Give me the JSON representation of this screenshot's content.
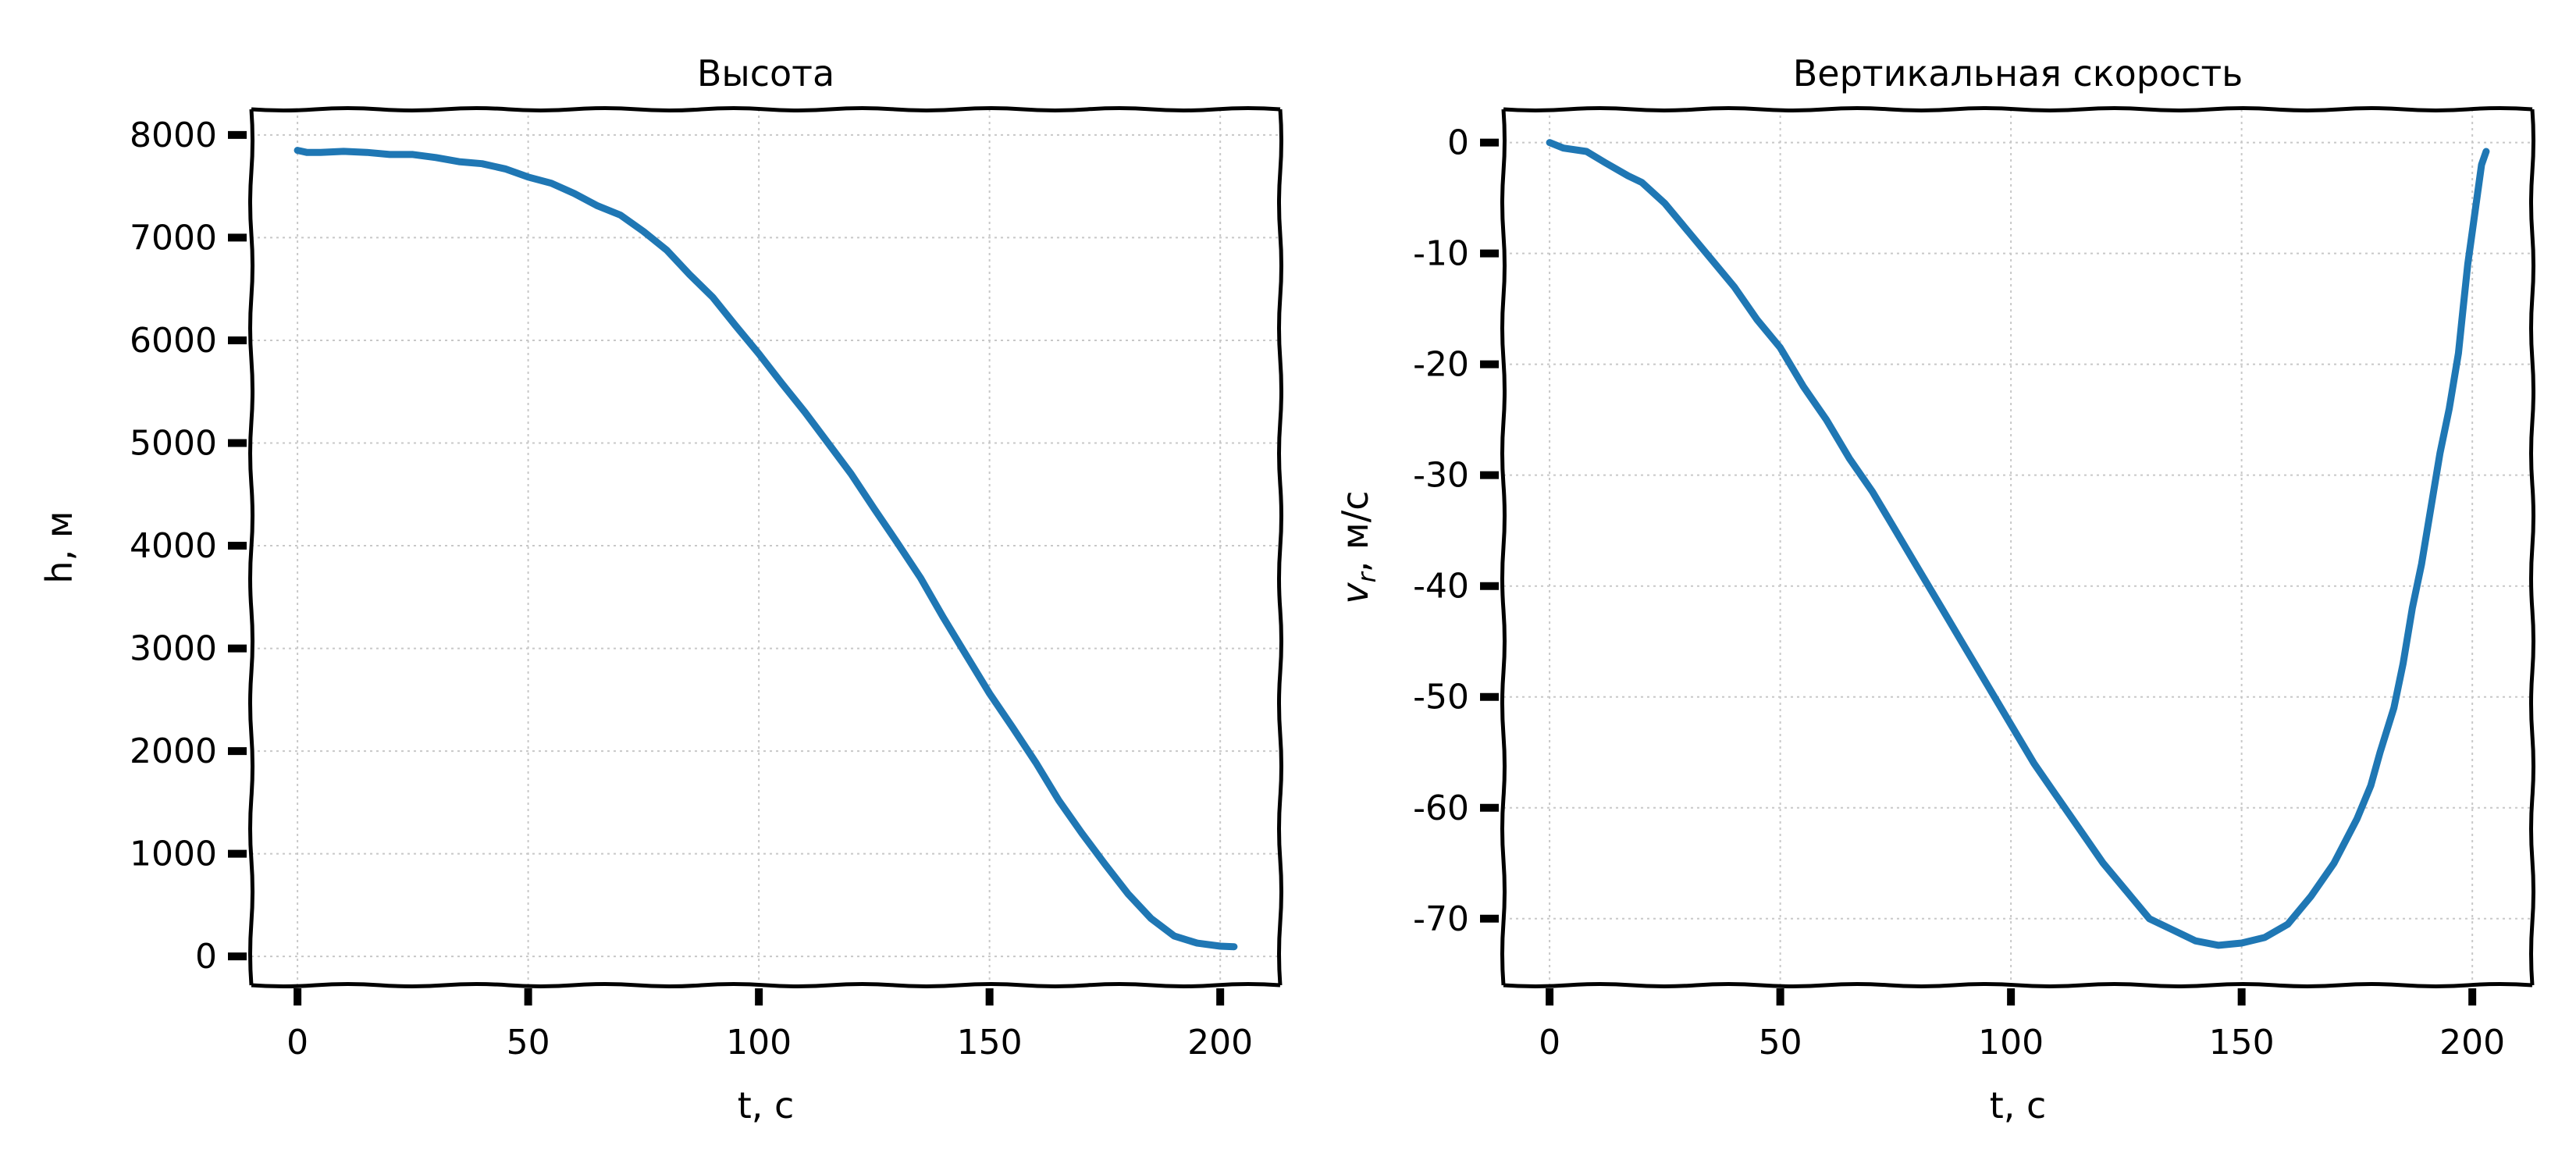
{
  "chart_data": [
    {
      "type": "line",
      "title": "Высота",
      "xlabel": "t, c",
      "ylabel": "h, м",
      "xlim": [
        -10,
        213
      ],
      "ylim": [
        -280,
        8250
      ],
      "xticks": [
        0,
        50,
        100,
        150,
        200
      ],
      "yticks": [
        0,
        1000,
        2000,
        3000,
        4000,
        5000,
        6000,
        7000,
        8000
      ],
      "grid": true,
      "color": "#1f77b4",
      "series": [
        {
          "x": [
            0,
            2,
            5,
            10,
            15,
            20,
            25,
            30,
            35,
            40,
            45,
            50,
            55,
            60,
            65,
            70,
            75,
            80,
            85,
            90,
            95,
            100,
            105,
            110,
            115,
            120,
            125,
            130,
            135,
            140,
            145,
            150,
            155,
            160,
            165,
            170,
            175,
            180,
            185,
            190,
            195,
            200,
            203
          ],
          "y": [
            7850,
            7830,
            7830,
            7840,
            7830,
            7810,
            7810,
            7780,
            7740,
            7720,
            7670,
            7590,
            7530,
            7430,
            7310,
            7220,
            7060,
            6880,
            6640,
            6420,
            6140,
            5870,
            5580,
            5300,
            5000,
            4700,
            4360,
            4030,
            3690,
            3300,
            2930,
            2560,
            2230,
            1890,
            1520,
            1200,
            900,
            610,
            370,
            200,
            130,
            100,
            95
          ]
        }
      ]
    },
    {
      "type": "line",
      "title": "Вертикальная скорость",
      "xlabel": "t, c",
      "ylabel": "v_r, м/c",
      "xlim": [
        -10,
        213
      ],
      "ylim": [
        -76,
        3
      ],
      "xticks": [
        0,
        50,
        100,
        150,
        200
      ],
      "yticks": [
        0,
        -10,
        -20,
        -30,
        -40,
        -50,
        -60,
        -70
      ],
      "grid": true,
      "color": "#1f77b4",
      "series": [
        {
          "x": [
            0,
            3,
            8,
            12,
            17,
            20,
            25,
            30,
            35,
            40,
            45,
            50,
            55,
            60,
            65,
            70,
            75,
            80,
            85,
            90,
            95,
            100,
            105,
            110,
            115,
            120,
            125,
            130,
            135,
            140,
            145,
            150,
            155,
            160,
            165,
            170,
            175,
            178,
            180,
            183,
            185,
            187,
            189,
            191,
            193,
            195,
            197,
            198,
            199,
            200,
            201,
            202,
            203
          ],
          "y": [
            0,
            -0.5,
            -0.8,
            -1.8,
            -3,
            -3.6,
            -5.5,
            -8,
            -10.5,
            -13,
            -16,
            -18.5,
            -22,
            -25,
            -28.5,
            -31.5,
            -35,
            -38.5,
            -42,
            -45.5,
            -49,
            -52.5,
            -56,
            -59,
            -62,
            -65,
            -67.5,
            -70,
            -71,
            -72,
            -72.4,
            -72.2,
            -71.7,
            -70.5,
            -68,
            -65,
            -61,
            -58,
            -55,
            -51,
            -47,
            -42,
            -38,
            -33,
            -28,
            -24,
            -19,
            -15,
            -11,
            -8,
            -5,
            -2,
            -0.8
          ]
        }
      ]
    }
  ]
}
